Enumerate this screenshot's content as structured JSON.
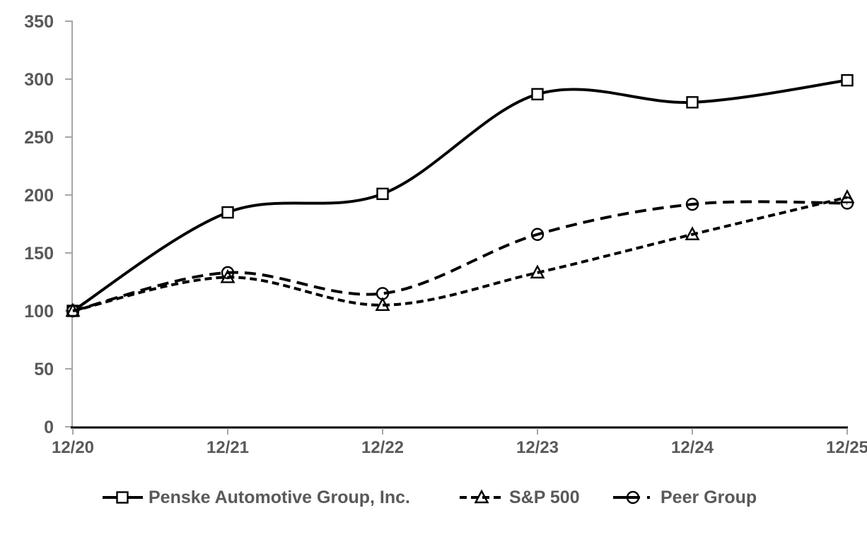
{
  "chart_data": {
    "type": "line",
    "title": "",
    "categories": [
      "12/20",
      "12/21",
      "12/22",
      "12/23",
      "12/24",
      "12/25"
    ],
    "series": [
      {
        "name": "Penske Automotive Group, Inc.",
        "values": [
          100,
          185,
          201,
          287,
          280,
          299
        ],
        "line_style": "solid",
        "marker": "square",
        "color": "#000000"
      },
      {
        "name": "S&P 500",
        "values": [
          100,
          129,
          105,
          133,
          166,
          198
        ],
        "line_style": "dashed",
        "marker": "triangle",
        "color": "#000000"
      },
      {
        "name": "Peer Group",
        "values": [
          100,
          133,
          115,
          166,
          192,
          193
        ],
        "line_style": "long-dash",
        "marker": "circle",
        "color": "#000000"
      }
    ],
    "xlabel": "",
    "ylabel": "",
    "ylim": [
      0,
      350
    ],
    "yticks": [
      0,
      50,
      100,
      150,
      200,
      250,
      300,
      350
    ],
    "grid": false,
    "smooth_lines": true,
    "legend_position": "bottom",
    "colors": {
      "line": "#000000",
      "tick_label_text": "#595959",
      "legend_text": "#595959",
      "y_axis": "#a6a6a6",
      "x_axis": "#000000",
      "marker_fill": "#ffffff"
    }
  }
}
